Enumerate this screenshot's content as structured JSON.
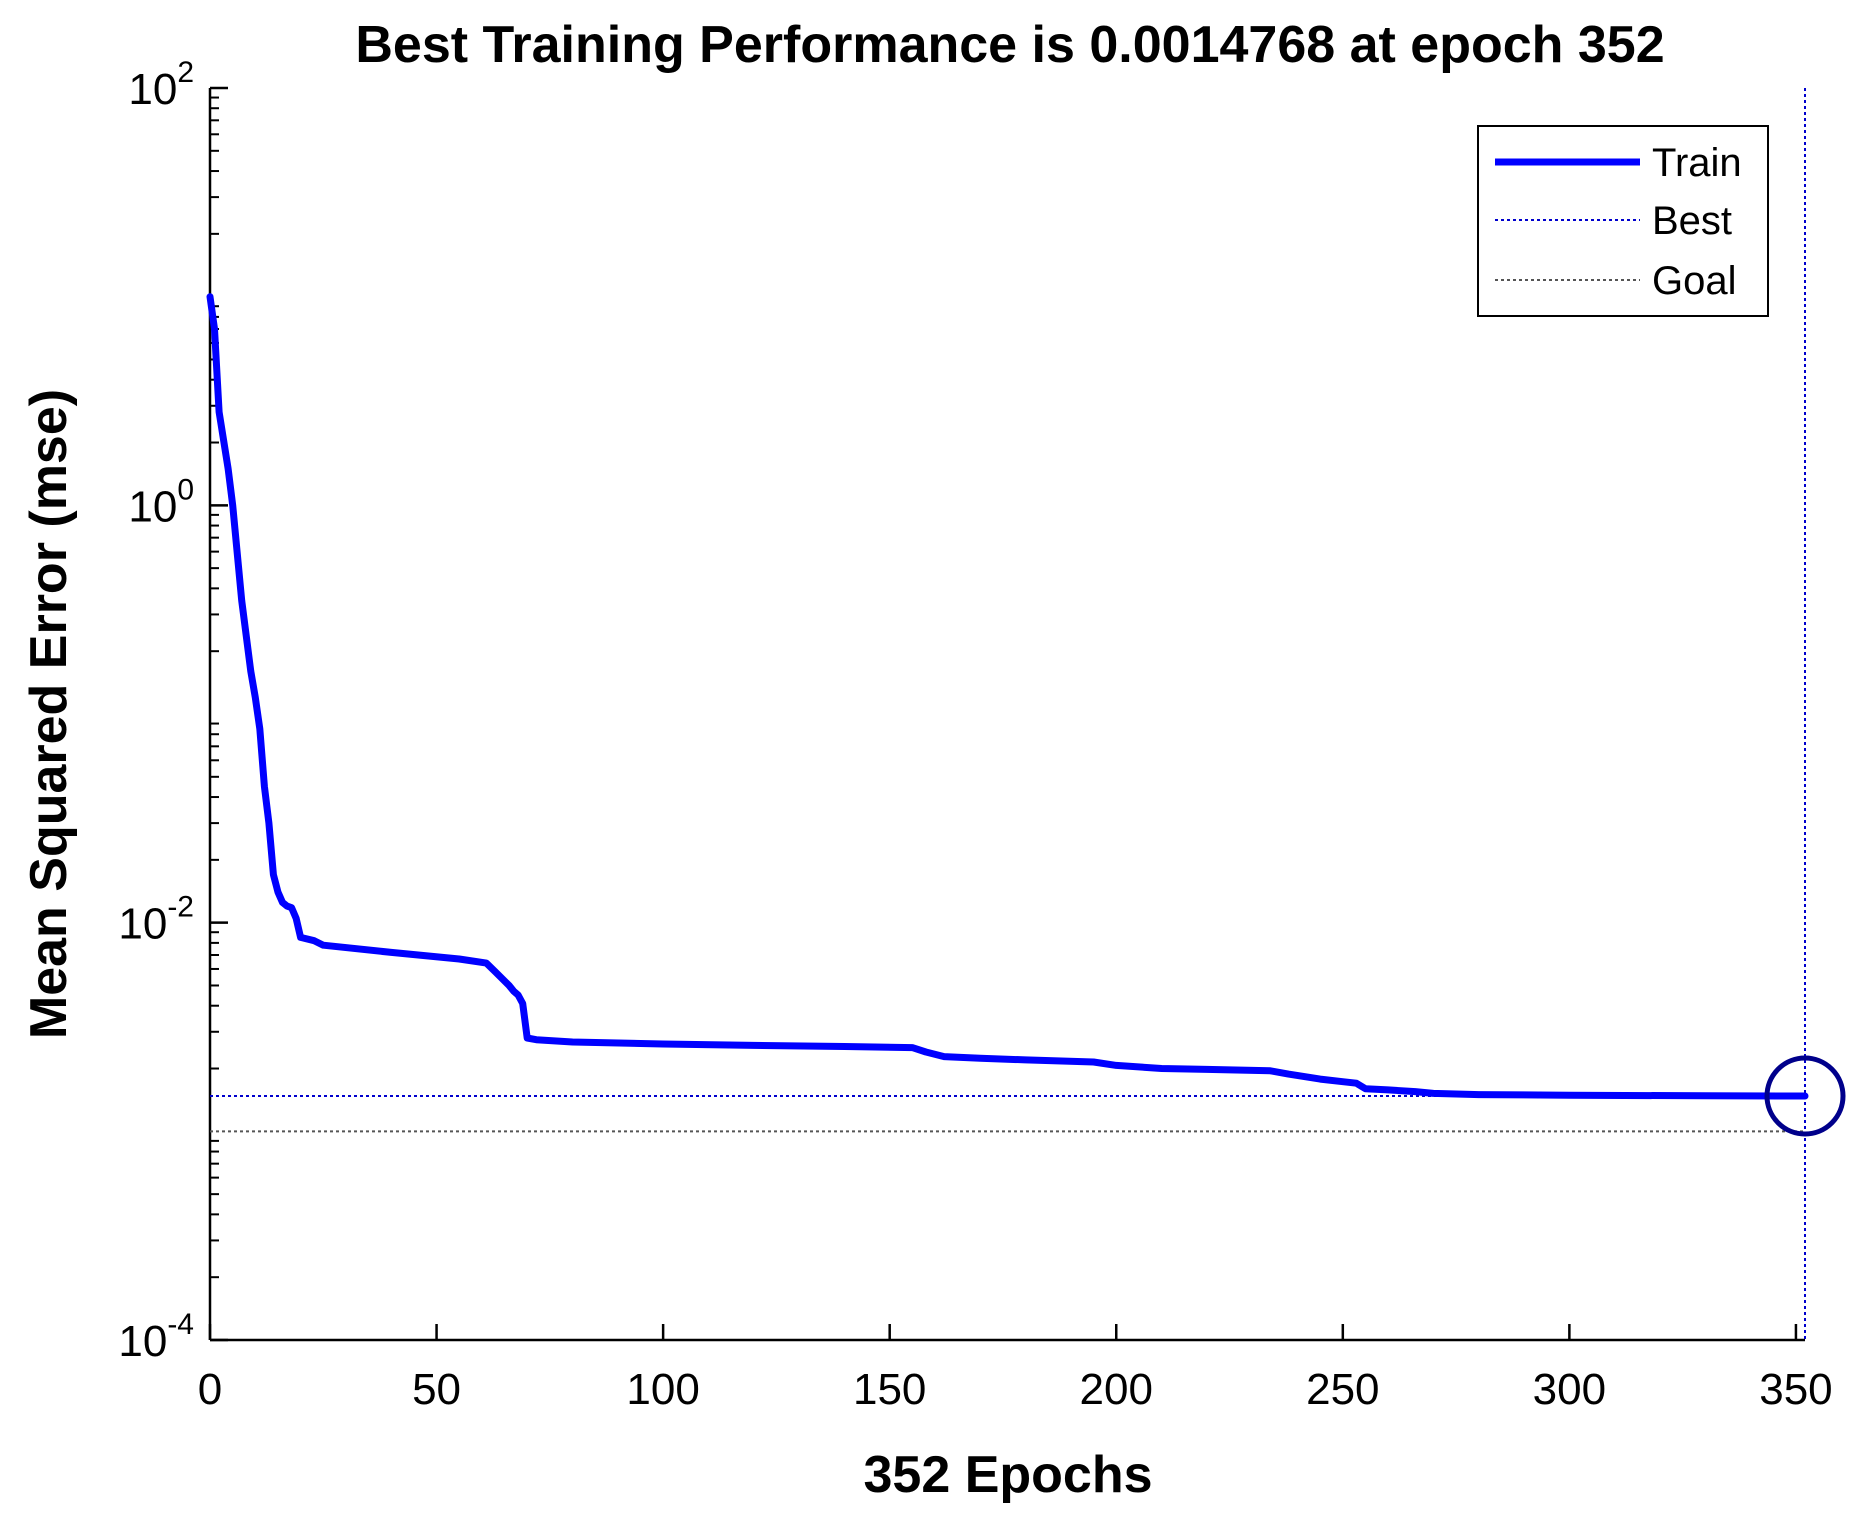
{
  "chart_data": {
    "type": "line",
    "title": "Best Training Performance is 0.0014768 at epoch 352",
    "xlabel": "352 Epochs",
    "ylabel": "Mean Squared Error  (mse)",
    "xlim": [
      0,
      352
    ],
    "ylim": [
      0.0001,
      100
    ],
    "yscale": "log",
    "x_ticks": [
      0,
      50,
      100,
      150,
      200,
      250,
      300,
      350
    ],
    "x_tick_labels": [
      "0",
      "50",
      "100",
      "150",
      "200",
      "250",
      "300",
      "350"
    ],
    "y_ticks": [
      {
        "value": 100,
        "base": "10",
        "exp": "2"
      },
      {
        "value": 1,
        "base": "10",
        "exp": "0"
      },
      {
        "value": 0.01,
        "base": "10",
        "exp": "-2"
      },
      {
        "value": 0.0001,
        "base": "10",
        "exp": "-4"
      }
    ],
    "grid": false,
    "legend_position": "top-right",
    "legend": [
      "Train",
      "Best",
      "Goal"
    ],
    "series": [
      {
        "name": "Train",
        "color": "#0000ff",
        "x": [
          0,
          1,
          2,
          4,
          5,
          7,
          9,
          10,
          11,
          12,
          13,
          14,
          15,
          16,
          17,
          18,
          19,
          20,
          23,
          25,
          40,
          55,
          61,
          63,
          66,
          67,
          68,
          69,
          70,
          72,
          80,
          100,
          120,
          140,
          155,
          158,
          162,
          170,
          180,
          195,
          200,
          210,
          220,
          234,
          238,
          245,
          250,
          253,
          255,
          260,
          266,
          270,
          280,
          300,
          330,
          352
        ],
        "y": [
          10,
          7,
          2.8,
          1.5,
          1.0,
          0.35,
          0.16,
          0.12,
          0.085,
          0.045,
          0.03,
          0.017,
          0.014,
          0.0125,
          0.012,
          0.0118,
          0.0105,
          0.0085,
          0.0082,
          0.0078,
          0.0072,
          0.0067,
          0.0064,
          0.0058,
          0.005,
          0.0047,
          0.0045,
          0.0041,
          0.0028,
          0.00275,
          0.00268,
          0.00262,
          0.00258,
          0.00255,
          0.00252,
          0.0024,
          0.00228,
          0.00224,
          0.0022,
          0.00215,
          0.00207,
          0.002,
          0.00198,
          0.00195,
          0.00188,
          0.00178,
          0.00173,
          0.0017,
          0.0016,
          0.00158,
          0.00155,
          0.00152,
          0.0015,
          0.00149,
          0.00148,
          0.0014768
        ]
      }
    ],
    "best": {
      "epoch": 352,
      "value": 0.0014768,
      "color": "#0000cd",
      "marker_color": "#00008b"
    },
    "goal": {
      "value": 0.001,
      "color": "#555555"
    }
  }
}
